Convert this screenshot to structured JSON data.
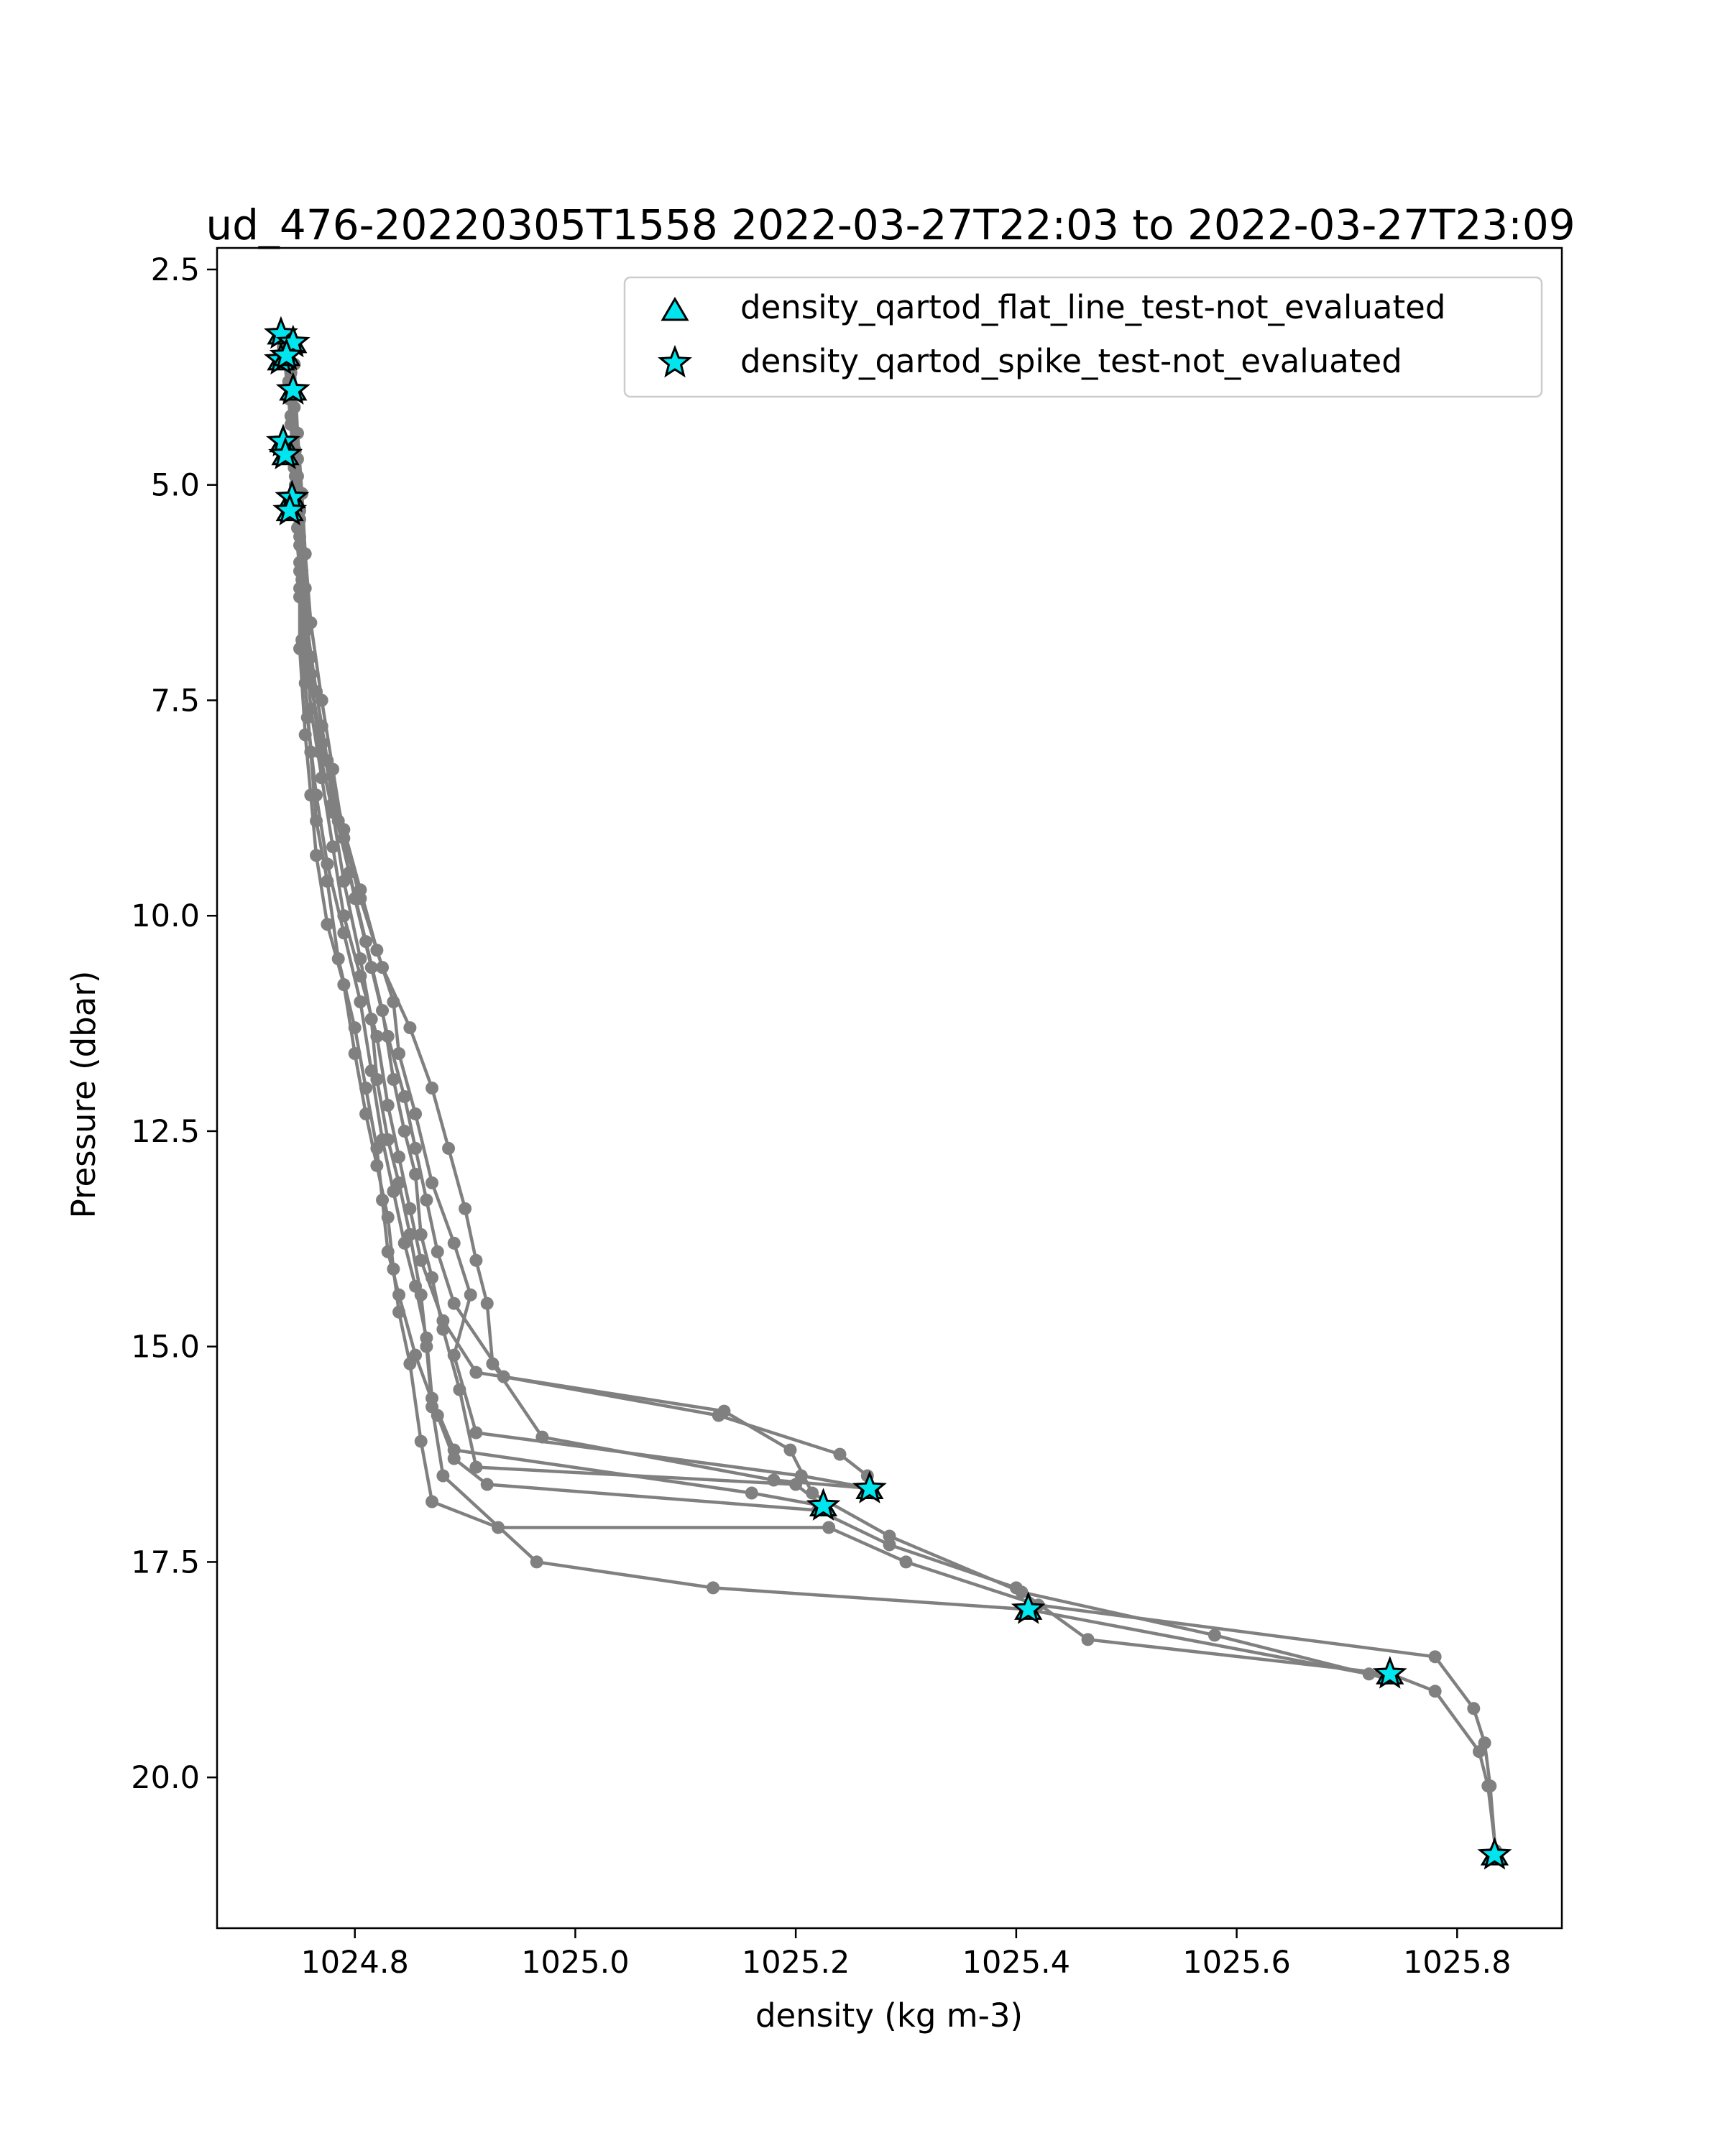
{
  "chart_data": {
    "type": "line",
    "title": "ud_476-20220305T1558 2022-03-27T22:03 to 2022-03-27T23:09",
    "xlabel": "density (kg m-3)",
    "ylabel": "Pressure (dbar)",
    "xlim": [
      1024.675,
      1025.895
    ],
    "ylim": [
      21.75,
      2.25
    ],
    "y_inverted": true,
    "grid": false,
    "x_ticks": [
      1024.8,
      1025.0,
      1025.2,
      1025.4,
      1025.6,
      1025.8
    ],
    "x_tick_labels": [
      "1024.8",
      "1025.0",
      "1025.2",
      "1025.4",
      "1025.6",
      "1025.8"
    ],
    "y_ticks": [
      2.5,
      5.0,
      7.5,
      10.0,
      12.5,
      15.0,
      17.5,
      20.0
    ],
    "y_tick_labels": [
      "2.5",
      "5.0",
      "7.5",
      "10.0",
      "12.5",
      "15.0",
      "17.5",
      "20.0"
    ],
    "colors": {
      "profile": "#808080",
      "flag_fill": "#00e5ee",
      "flag_edge": "#000000",
      "axes": "#000000"
    },
    "legend": {
      "placement": "upper-right",
      "entries": [
        {
          "label": "density_qartod_flat_line_test-not_evaluated",
          "marker": "triangle"
        },
        {
          "label": "density_qartod_spike_test-not_evaluated",
          "marker": "star"
        }
      ]
    },
    "series": [
      {
        "values": [
          [
            1024.735,
            3.3
          ],
          [
            1024.74,
            3.8
          ],
          [
            1024.745,
            4.6
          ],
          [
            1024.745,
            5.3
          ],
          [
            1024.75,
            6.0
          ],
          [
            1024.75,
            6.9
          ],
          [
            1024.755,
            7.9
          ],
          [
            1024.76,
            8.6
          ],
          [
            1024.765,
            9.3
          ],
          [
            1024.775,
            10.1
          ],
          [
            1024.79,
            10.8
          ],
          [
            1024.8,
            11.6
          ],
          [
            1024.81,
            12.3
          ],
          [
            1024.82,
            12.9
          ],
          [
            1024.83,
            13.5
          ],
          [
            1024.835,
            14.1
          ],
          [
            1024.84,
            14.6
          ],
          [
            1024.85,
            15.2
          ],
          [
            1024.86,
            16.1
          ],
          [
            1024.87,
            16.8
          ],
          [
            1024.93,
            17.1
          ],
          [
            1025.23,
            17.1
          ],
          [
            1025.3,
            17.5
          ],
          [
            1025.42,
            18.0
          ],
          [
            1025.78,
            18.6
          ],
          [
            1025.815,
            19.2
          ],
          [
            1025.825,
            19.6
          ],
          [
            1025.83,
            20.1
          ],
          [
            1025.835,
            20.9
          ]
        ]
      },
      {
        "values": [
          [
            1024.74,
            3.5
          ],
          [
            1024.742,
            4.2
          ],
          [
            1024.746,
            4.9
          ],
          [
            1024.75,
            5.6
          ],
          [
            1024.75,
            6.3
          ],
          [
            1024.755,
            7.3
          ],
          [
            1024.76,
            8.1
          ],
          [
            1024.765,
            8.9
          ],
          [
            1024.775,
            9.6
          ],
          [
            1024.785,
            10.5
          ],
          [
            1024.8,
            11.3
          ],
          [
            1024.81,
            12.0
          ],
          [
            1024.82,
            12.7
          ],
          [
            1024.825,
            13.3
          ],
          [
            1024.83,
            13.9
          ],
          [
            1024.84,
            14.4
          ],
          [
            1024.855,
            15.1
          ],
          [
            1024.875,
            15.8
          ],
          [
            1024.89,
            16.3
          ],
          [
            1024.92,
            16.6
          ],
          [
            1025.22,
            16.9
          ],
          [
            1025.285,
            17.3
          ],
          [
            1025.4,
            17.8
          ],
          [
            1025.465,
            18.4
          ],
          [
            1025.74,
            18.8
          ],
          [
            1025.78,
            19.0
          ],
          [
            1025.82,
            19.7
          ],
          [
            1025.828,
            20.1
          ],
          [
            1025.835,
            20.85
          ]
        ]
      },
      {
        "values": [
          [
            1024.738,
            3.35
          ],
          [
            1024.742,
            3.9
          ],
          [
            1024.748,
            4.7
          ],
          [
            1024.75,
            5.4
          ],
          [
            1024.752,
            6.1
          ],
          [
            1024.755,
            6.7
          ],
          [
            1024.76,
            7.6
          ],
          [
            1024.77,
            8.4
          ],
          [
            1024.78,
            9.2
          ],
          [
            1024.79,
            10.0
          ],
          [
            1024.805,
            10.7
          ],
          [
            1024.82,
            11.4
          ],
          [
            1024.83,
            12.2
          ],
          [
            1024.84,
            12.8
          ],
          [
            1024.85,
            13.4
          ],
          [
            1024.86,
            14.0
          ],
          [
            1024.88,
            14.7
          ],
          [
            1024.91,
            15.3
          ],
          [
            1025.135,
            15.75
          ],
          [
            1025.195,
            16.2
          ],
          [
            1025.215,
            16.7
          ],
          [
            1025.285,
            17.2
          ],
          [
            1025.405,
            17.85
          ],
          [
            1025.58,
            18.35
          ],
          [
            1025.735,
            18.85
          ]
        ]
      },
      {
        "values": [
          [
            1024.735,
            3.4
          ],
          [
            1024.74,
            4.0
          ],
          [
            1024.745,
            4.8
          ],
          [
            1024.748,
            5.5
          ],
          [
            1024.75,
            6.2
          ],
          [
            1024.757,
            7.1
          ],
          [
            1024.77,
            8.0
          ],
          [
            1024.785,
            8.9
          ],
          [
            1024.8,
            9.8
          ],
          [
            1024.815,
            10.6
          ],
          [
            1024.83,
            11.4
          ],
          [
            1024.845,
            12.1
          ],
          [
            1024.855,
            12.7
          ],
          [
            1024.865,
            13.3
          ],
          [
            1024.875,
            13.9
          ],
          [
            1024.89,
            14.5
          ],
          [
            1024.935,
            15.35
          ],
          [
            1025.13,
            15.8
          ],
          [
            1025.24,
            16.25
          ],
          [
            1025.265,
            16.5
          ],
          [
            1025.27,
            16.7
          ]
        ]
      },
      {
        "values": [
          [
            1024.745,
            3.6
          ],
          [
            1024.748,
            4.4
          ],
          [
            1024.752,
            5.1
          ],
          [
            1024.755,
            5.8
          ],
          [
            1024.76,
            6.6
          ],
          [
            1024.77,
            7.5
          ],
          [
            1024.78,
            8.3
          ],
          [
            1024.79,
            9.1
          ],
          [
            1024.805,
            9.8
          ],
          [
            1024.825,
            10.6
          ],
          [
            1024.85,
            11.3
          ],
          [
            1024.87,
            12.0
          ],
          [
            1024.885,
            12.7
          ],
          [
            1024.9,
            13.4
          ],
          [
            1024.91,
            14.0
          ],
          [
            1024.92,
            14.5
          ],
          [
            1024.925,
            15.2
          ],
          [
            1024.97,
            16.05
          ],
          [
            1025.18,
            16.55
          ],
          [
            1025.27,
            16.65
          ]
        ]
      },
      {
        "values": [
          [
            1024.74,
            3.45
          ],
          [
            1024.745,
            4.1
          ],
          [
            1024.748,
            4.9
          ],
          [
            1024.75,
            5.7
          ],
          [
            1024.755,
            6.5
          ],
          [
            1024.765,
            7.4
          ],
          [
            1024.775,
            8.2
          ],
          [
            1024.79,
            9.0
          ],
          [
            1024.805,
            9.7
          ],
          [
            1024.82,
            10.4
          ],
          [
            1024.835,
            11.0
          ],
          [
            1024.84,
            11.6
          ],
          [
            1024.855,
            12.3
          ],
          [
            1024.87,
            13.1
          ],
          [
            1024.89,
            13.8
          ],
          [
            1024.905,
            14.4
          ],
          [
            1024.89,
            15.1
          ],
          [
            1024.91,
            16.0
          ],
          [
            1025.205,
            16.5
          ],
          [
            1025.27,
            16.65
          ]
        ]
      },
      {
        "values": [
          [
            1024.737,
            3.5
          ],
          [
            1024.742,
            4.3
          ],
          [
            1024.746,
            5.0
          ],
          [
            1024.75,
            5.9
          ],
          [
            1024.752,
            6.8
          ],
          [
            1024.757,
            7.7
          ],
          [
            1024.765,
            8.6
          ],
          [
            1024.775,
            9.4
          ],
          [
            1024.79,
            10.2
          ],
          [
            1024.805,
            11.0
          ],
          [
            1024.815,
            11.8
          ],
          [
            1024.825,
            12.6
          ],
          [
            1024.835,
            13.2
          ],
          [
            1024.845,
            13.8
          ],
          [
            1024.855,
            14.3
          ],
          [
            1024.865,
            14.9
          ],
          [
            1024.87,
            15.6
          ],
          [
            1024.89,
            16.2
          ],
          [
            1025.16,
            16.7
          ],
          [
            1025.225,
            16.85
          ]
        ]
      },
      {
        "values": [
          [
            1024.74,
            3.55
          ],
          [
            1024.744,
            4.5
          ],
          [
            1024.748,
            5.2
          ],
          [
            1024.752,
            6.0
          ],
          [
            1024.76,
            7.0
          ],
          [
            1024.77,
            7.8
          ],
          [
            1024.78,
            8.7
          ],
          [
            1024.795,
            9.5
          ],
          [
            1024.81,
            10.3
          ],
          [
            1024.825,
            11.1
          ],
          [
            1024.835,
            11.9
          ],
          [
            1024.845,
            12.5
          ],
          [
            1024.855,
            13.0
          ],
          [
            1024.86,
            13.7
          ],
          [
            1024.87,
            14.2
          ],
          [
            1024.88,
            14.8
          ],
          [
            1024.895,
            15.5
          ],
          [
            1024.91,
            16.4
          ],
          [
            1025.2,
            16.6
          ],
          [
            1025.225,
            16.85
          ]
        ]
      },
      {
        "values": [
          [
            1024.742,
            3.7
          ],
          [
            1024.746,
            4.6
          ],
          [
            1024.75,
            5.3
          ],
          [
            1024.755,
            6.2
          ],
          [
            1024.76,
            7.2
          ],
          [
            1024.768,
            8.1
          ],
          [
            1024.78,
            8.8
          ],
          [
            1024.79,
            9.6
          ],
          [
            1024.805,
            10.5
          ],
          [
            1024.815,
            11.2
          ],
          [
            1024.82,
            11.9
          ],
          [
            1024.83,
            12.6
          ],
          [
            1024.84,
            13.1
          ],
          [
            1024.85,
            13.7
          ],
          [
            1024.86,
            14.4
          ],
          [
            1024.865,
            15.0
          ],
          [
            1024.87,
            15.7
          ],
          [
            1024.88,
            16.5
          ],
          [
            1024.965,
            17.5
          ],
          [
            1025.125,
            17.8
          ],
          [
            1025.41,
            18.05
          ],
          [
            1025.72,
            18.8
          ],
          [
            1025.74,
            18.8
          ]
        ]
      }
    ],
    "flagged_points": [
      {
        "x": 1024.733,
        "y": 3.25
      },
      {
        "x": 1024.744,
        "y": 3.35
      },
      {
        "x": 1024.733,
        "y": 3.55
      },
      {
        "x": 1024.738,
        "y": 3.5
      },
      {
        "x": 1024.744,
        "y": 3.9
      },
      {
        "x": 1024.735,
        "y": 4.5
      },
      {
        "x": 1024.737,
        "y": 4.65
      },
      {
        "x": 1024.743,
        "y": 5.15
      },
      {
        "x": 1024.741,
        "y": 5.3
      },
      {
        "x": 1025.267,
        "y": 16.65
      },
      {
        "x": 1025.225,
        "y": 16.85
      },
      {
        "x": 1025.411,
        "y": 18.05
      },
      {
        "x": 1025.739,
        "y": 18.8
      },
      {
        "x": 1025.834,
        "y": 20.9
      }
    ]
  }
}
